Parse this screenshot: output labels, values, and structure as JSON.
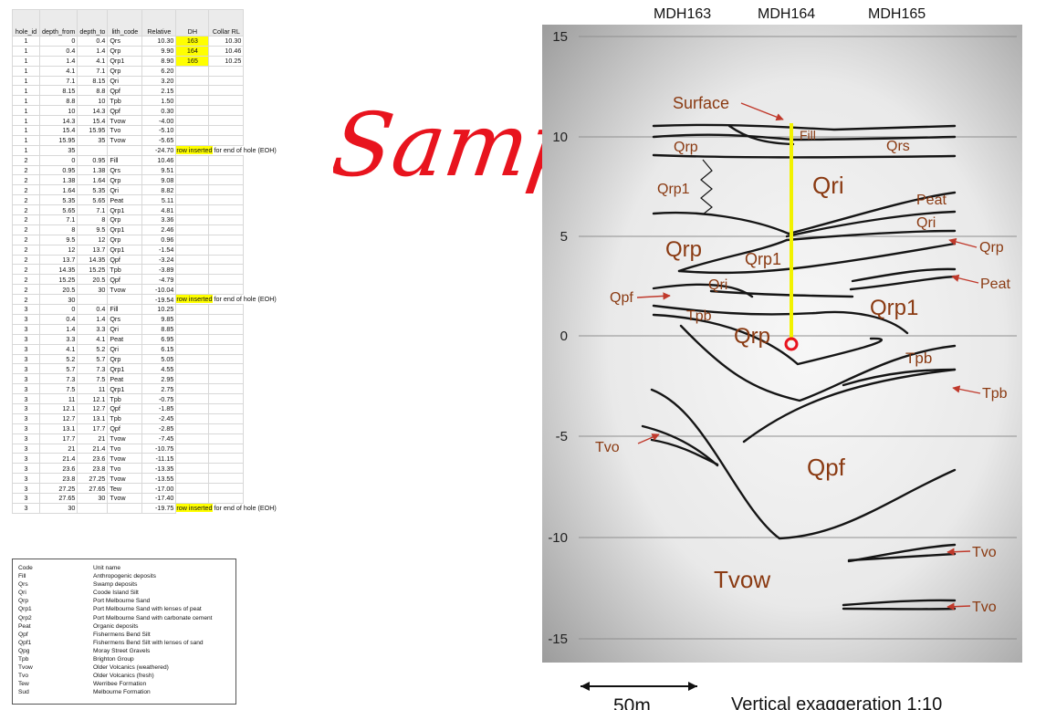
{
  "sheet": {
    "headers": [
      "hole_id",
      "depth_from",
      "depth_to",
      "lith_code",
      "Relative",
      "DH",
      "Collar RL"
    ],
    "rows": [
      [
        "1",
        "0",
        "0.4",
        "Qrs",
        "10.30",
        "163",
        "10.30",
        ""
      ],
      [
        "1",
        "0.4",
        "1.4",
        "Qrp",
        "9.90",
        "164",
        "10.46",
        ""
      ],
      [
        "1",
        "1.4",
        "4.1",
        "Qrp1",
        "8.90",
        "165",
        "10.25",
        ""
      ],
      [
        "1",
        "4.1",
        "7.1",
        "Qrp",
        "6.20",
        "",
        "",
        ""
      ],
      [
        "1",
        "7.1",
        "8.15",
        "Qri",
        "3.20",
        "",
        "",
        ""
      ],
      [
        "1",
        "8.15",
        "8.8",
        "Qpf",
        "2.15",
        "",
        "",
        ""
      ],
      [
        "1",
        "8.8",
        "10",
        "Tpb",
        "1.50",
        "",
        "",
        ""
      ],
      [
        "1",
        "10",
        "14.3",
        "Qpf",
        "0.30",
        "",
        "",
        ""
      ],
      [
        "1",
        "14.3",
        "15.4",
        "Tvow",
        "-4.00",
        "",
        "",
        ""
      ],
      [
        "1",
        "15.4",
        "15.95",
        "Tvo",
        "-5.10",
        "",
        "",
        ""
      ],
      [
        "1",
        "15.95",
        "35",
        "Tvow",
        "-5.65",
        "",
        "",
        ""
      ],
      [
        "1",
        "35",
        "",
        "",
        "-24.70",
        "",
        "",
        "note"
      ],
      [
        "2",
        "0",
        "0.95",
        "Fill",
        "10.46",
        "",
        "",
        ""
      ],
      [
        "2",
        "0.95",
        "1.38",
        "Qrs",
        "9.51",
        "",
        "",
        ""
      ],
      [
        "2",
        "1.38",
        "1.64",
        "Qrp",
        "9.08",
        "",
        "",
        ""
      ],
      [
        "2",
        "1.64",
        "5.35",
        "Qri",
        "8.82",
        "",
        "",
        ""
      ],
      [
        "2",
        "5.35",
        "5.65",
        "Peat",
        "5.11",
        "",
        "",
        ""
      ],
      [
        "2",
        "5.65",
        "7.1",
        "Qrp1",
        "4.81",
        "",
        "",
        ""
      ],
      [
        "2",
        "7.1",
        "8",
        "Qrp",
        "3.36",
        "",
        "",
        ""
      ],
      [
        "2",
        "8",
        "9.5",
        "Qrp1",
        "2.46",
        "",
        "",
        ""
      ],
      [
        "2",
        "9.5",
        "12",
        "Qrp",
        "0.96",
        "",
        "",
        ""
      ],
      [
        "2",
        "12",
        "13.7",
        "Qrp1",
        "-1.54",
        "",
        "",
        ""
      ],
      [
        "2",
        "13.7",
        "14.35",
        "Qpf",
        "-3.24",
        "",
        "",
        ""
      ],
      [
        "2",
        "14.35",
        "15.25",
        "Tpb",
        "-3.89",
        "",
        "",
        ""
      ],
      [
        "2",
        "15.25",
        "20.5",
        "Qpf",
        "-4.79",
        "",
        "",
        ""
      ],
      [
        "2",
        "20.5",
        "30",
        "Tvow",
        "-10.04",
        "",
        "",
        ""
      ],
      [
        "2",
        "30",
        "",
        "",
        "-19.54",
        "",
        "",
        "note"
      ],
      [
        "3",
        "0",
        "0.4",
        "Fill",
        "10.25",
        "",
        "",
        ""
      ],
      [
        "3",
        "0.4",
        "1.4",
        "Qrs",
        "9.85",
        "",
        "",
        ""
      ],
      [
        "3",
        "1.4",
        "3.3",
        "Qri",
        "8.85",
        "",
        "",
        ""
      ],
      [
        "3",
        "3.3",
        "4.1",
        "Peat",
        "6.95",
        "",
        "",
        ""
      ],
      [
        "3",
        "4.1",
        "5.2",
        "Qri",
        "6.15",
        "",
        "",
        ""
      ],
      [
        "3",
        "5.2",
        "5.7",
        "Qrp",
        "5.05",
        "",
        "",
        ""
      ],
      [
        "3",
        "5.7",
        "7.3",
        "Qrp1",
        "4.55",
        "",
        "",
        ""
      ],
      [
        "3",
        "7.3",
        "7.5",
        "Peat",
        "2.95",
        "",
        "",
        ""
      ],
      [
        "3",
        "7.5",
        "11",
        "Qrp1",
        "2.75",
        "",
        "",
        ""
      ],
      [
        "3",
        "11",
        "12.1",
        "Tpb",
        "-0.75",
        "",
        "",
        ""
      ],
      [
        "3",
        "12.1",
        "12.7",
        "Qpf",
        "-1.85",
        "",
        "",
        ""
      ],
      [
        "3",
        "12.7",
        "13.1",
        "Tpb",
        "-2.45",
        "",
        "",
        ""
      ],
      [
        "3",
        "13.1",
        "17.7",
        "Qpf",
        "-2.85",
        "",
        "",
        ""
      ],
      [
        "3",
        "17.7",
        "21",
        "Tvow",
        "-7.45",
        "",
        "",
        ""
      ],
      [
        "3",
        "21",
        "21.4",
        "Tvo",
        "-10.75",
        "",
        "",
        ""
      ],
      [
        "3",
        "21.4",
        "23.6",
        "Tvow",
        "-11.15",
        "",
        "",
        ""
      ],
      [
        "3",
        "23.6",
        "23.8",
        "Tvo",
        "-13.35",
        "",
        "",
        ""
      ],
      [
        "3",
        "23.8",
        "27.25",
        "Tvow",
        "-13.55",
        "",
        "",
        ""
      ],
      [
        "3",
        "27.25",
        "27.65",
        "Tew",
        "-17.00",
        "",
        "",
        ""
      ],
      [
        "3",
        "27.65",
        "30",
        "Tvow",
        "-17.40",
        "",
        "",
        ""
      ],
      [
        "3",
        "30",
        "",
        "",
        "-19.75",
        "",
        "",
        "note"
      ]
    ],
    "note_highlight": "row inserted",
    "note_rest": " for end of hole (EOH)"
  },
  "legend": {
    "rows": [
      [
        "Code",
        "Unit name"
      ],
      [
        "Fill",
        "Anthropogenic deposits"
      ],
      [
        "Qrs",
        "Swamp deposits"
      ],
      [
        "Qri",
        "Coode Island Silt"
      ],
      [
        "Qrp",
        "Port Melbourne Sand"
      ],
      [
        "Qrp1",
        "Port Melbourne Sand with lenses of peat"
      ],
      [
        "Qrp2",
        "Port Melbourne Sand with carbonate cement"
      ],
      [
        "Peat",
        "Organic deposits"
      ],
      [
        "Qpf",
        "Fishermens Bend Silt"
      ],
      [
        "Qpf1",
        "Fishermens Bend Silt with lenses of sand"
      ],
      [
        "Qpg",
        "Moray Street Gravels"
      ],
      [
        "Tpb",
        "Brighton Group"
      ],
      [
        "Tvow",
        "Older Volcanics (weathered)"
      ],
      [
        "Tvo",
        "Older Volcanics (fresh)"
      ],
      [
        "Tew",
        "Werribee Formation"
      ],
      [
        "Sud",
        "Melbourne Formation"
      ]
    ]
  },
  "watermark": "Sample",
  "section": {
    "drillholes": [
      "MDH163",
      "MDH164",
      "MDH165"
    ],
    "y_ticks": [
      "15",
      "10",
      "5",
      "0",
      "-5",
      "-10",
      "-15"
    ],
    "labels": {
      "surface": "Surface",
      "fill": "Fill",
      "qrs": "Qrs",
      "qrp_top": "Qrp",
      "qrp1_left": "Qrp1",
      "qri_big": "Qri",
      "peat_top": "Peat",
      "qri_right": "Qri",
      "qrp_right": "Qrp",
      "qrp_big": "Qrp",
      "qrp1_mid": "Qrp1",
      "qri_mid": "Qri",
      "peat_right": "Peat",
      "qrp1_big": "Qrp1",
      "qpf_left": "Qpf",
      "tpb_left": "Tpb",
      "qrp_lens": "Qrp",
      "tpb_right1": "Tpb",
      "tpb_right2": "Tpb",
      "tvo_left": "Tvo",
      "qpf_big": "Qpf",
      "tvow_big": "Tvow",
      "tvo_right1": "Tvo",
      "tvo_right2": "Tvo"
    },
    "scale_bar": "50m",
    "exaggeration": "Vertical exaggeration 1:10"
  },
  "colors": {
    "label_brown": "#8a3a12",
    "arrow_red": "#c0392b",
    "hole_yellow": "#f2f200",
    "watermark_red": "#e8141e"
  }
}
